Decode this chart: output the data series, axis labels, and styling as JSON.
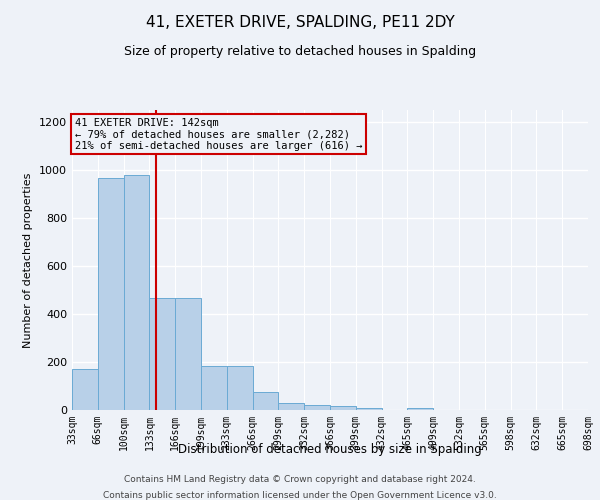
{
  "title": "41, EXETER DRIVE, SPALDING, PE11 2DY",
  "subtitle": "Size of property relative to detached houses in Spalding",
  "xlabel": "Distribution of detached houses by size in Spalding",
  "ylabel": "Number of detached properties",
  "bar_values": [
    170,
    965,
    980,
    465,
    465,
    185,
    185,
    75,
    28,
    22,
    15,
    10,
    0,
    10,
    0,
    0,
    0,
    0,
    0,
    0
  ],
  "categories": [
    "33sqm",
    "66sqm",
    "100sqm",
    "133sqm",
    "166sqm",
    "199sqm",
    "233sqm",
    "266sqm",
    "299sqm",
    "332sqm",
    "366sqm",
    "399sqm",
    "432sqm",
    "465sqm",
    "499sqm",
    "532sqm",
    "565sqm",
    "598sqm",
    "632sqm",
    "665sqm",
    "698sqm"
  ],
  "bar_color": "#b8d0e8",
  "bar_edge_color": "#6aaad4",
  "annotation_box_text": "41 EXETER DRIVE: 142sqm\n← 79% of detached houses are smaller (2,282)\n21% of semi-detached houses are larger (616) →",
  "annotation_box_color": "#cc0000",
  "property_line_x": 3.27,
  "ylim": [
    0,
    1250
  ],
  "yticks": [
    0,
    200,
    400,
    600,
    800,
    1000,
    1200
  ],
  "bg_color": "#eef2f8",
  "footer_line1": "Contains HM Land Registry data © Crown copyright and database right 2024.",
  "footer_line2": "Contains public sector information licensed under the Open Government Licence v3.0.",
  "grid_color": "#ffffff",
  "title_fontsize": 11,
  "subtitle_fontsize": 9
}
